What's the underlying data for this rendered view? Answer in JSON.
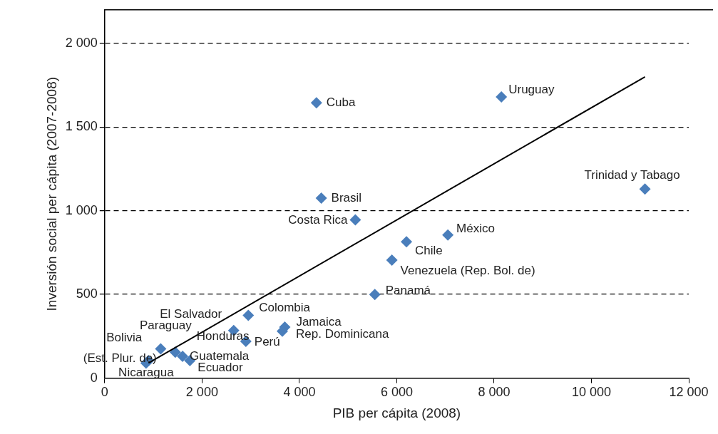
{
  "chart_data": {
    "type": "scatter",
    "xlabel": "PIB per cápita (2008)",
    "ylabel": "Inversión social per cápita (2007-2008)",
    "xlim": [
      0,
      12000
    ],
    "ylim": [
      0,
      2200
    ],
    "xticks": [
      {
        "value": 0,
        "label": "0"
      },
      {
        "value": 2000,
        "label": "2 000"
      },
      {
        "value": 4000,
        "label": "4 000"
      },
      {
        "value": 6000,
        "label": "6 000"
      },
      {
        "value": 8000,
        "label": "8 000"
      },
      {
        "value": 10000,
        "label": "10 000"
      },
      {
        "value": 12000,
        "label": "12 000"
      }
    ],
    "yticks": [
      {
        "value": 0,
        "label": "0"
      },
      {
        "value": 500,
        "label": "500"
      },
      {
        "value": 1000,
        "label": "1 000"
      },
      {
        "value": 1500,
        "label": "1 500"
      },
      {
        "value": 2000,
        "label": "2 000"
      }
    ],
    "grid": "y",
    "legend": false,
    "series": [
      {
        "type": "scatter",
        "color": "#4a7ebb",
        "marker": "diamond",
        "x": [
          900,
          850,
          1150,
          1450,
          1600,
          1750,
          2650,
          2950,
          2900,
          3700,
          3650,
          5550,
          5900,
          6200,
          7050,
          5150,
          4450,
          4350,
          8150,
          11100
        ],
        "values": [
          105,
          90,
          175,
          155,
          130,
          105,
          285,
          375,
          220,
          305,
          280,
          500,
          705,
          815,
          855,
          945,
          1075,
          1645,
          1680,
          1130
        ],
        "value_labels": [
          "Bolivia\n(Est. Plur. de)",
          "Nicaragua",
          "Paraguay",
          "Honduras",
          "Guatemala",
          "Ecuador",
          "El Salvador",
          "Colombia",
          "Perú",
          "Jamaica",
          "Rep. Dominicana",
          "Panamá",
          "Venezuela (Rep. Bol. de)",
          "Chile",
          "México",
          "Costa Rica",
          "Brasil",
          "Cuba",
          "Uruguay",
          "Trinidad y Tabago"
        ]
      },
      {
        "type": "line",
        "color": "#000000",
        "marker": "none",
        "line_style": "solid",
        "x": [
          900,
          11100
        ],
        "values": [
          90,
          1800
        ]
      }
    ]
  }
}
